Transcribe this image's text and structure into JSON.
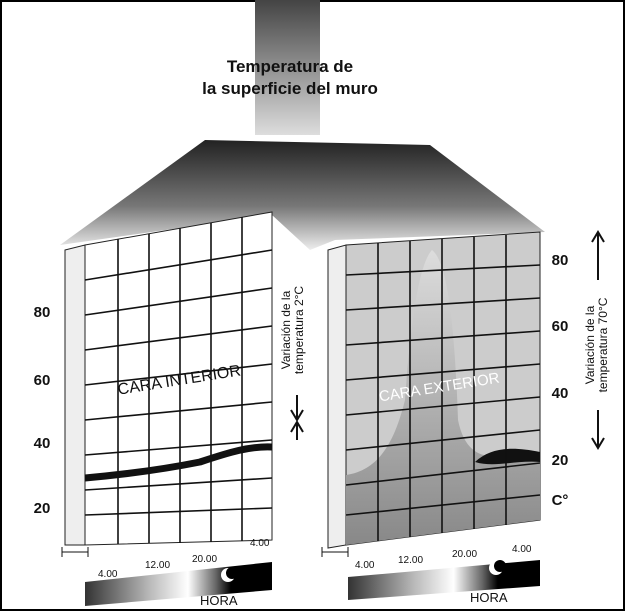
{
  "title": [
    "Temperatura de",
    "la superficie del muro"
  ],
  "interior": {
    "label": "CARA INTERIOR",
    "note": [
      "Variación de la",
      "temperatura 2°C"
    ],
    "ticks": [
      "80",
      "60",
      "40",
      "20"
    ],
    "hours": [
      "4.00",
      "12.00",
      "20.00",
      "4.00"
    ],
    "axis_label": "HORA"
  },
  "exterior": {
    "label": "CARA EXTERIOR",
    "note": [
      "Variación de la",
      "temperatura 70°C"
    ],
    "ticks": [
      "80",
      "60",
      "40",
      "20"
    ],
    "unit": "C°",
    "hours": [
      "4.00",
      "12.00",
      "20.00",
      "4.00"
    ],
    "axis_label": "HORA"
  }
}
